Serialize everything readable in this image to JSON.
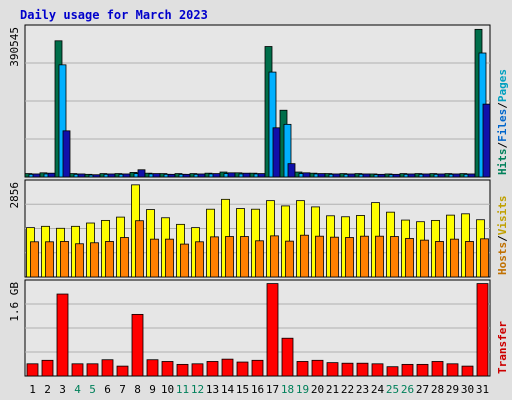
{
  "chart_data": {
    "title": "Daily usage for March 2023",
    "days": [
      "1",
      "2",
      "3",
      "4",
      "5",
      "6",
      "7",
      "8",
      "9",
      "10",
      "11",
      "12",
      "13",
      "14",
      "15",
      "16",
      "17",
      "18",
      "19",
      "20",
      "21",
      "22",
      "23",
      "24",
      "25",
      "26",
      "27",
      "28",
      "29",
      "30",
      "31"
    ],
    "weekend_days": [
      "4",
      "5",
      "11",
      "12",
      "18",
      "19",
      "25",
      "26"
    ],
    "panels": [
      {
        "type": "bar",
        "max_label": "390545",
        "ymax": 390545,
        "right_labels": [
          {
            "text": "Hits",
            "color": "#00805a"
          },
          {
            "text": "/",
            "color": "#000000"
          },
          {
            "text": "Files",
            "color": "#0066cc"
          },
          {
            "text": "/",
            "color": "#000000"
          },
          {
            "text": "Pages",
            "color": "#00a0c0"
          }
        ],
        "series": [
          {
            "name": "Hits",
            "color": "#006e4a",
            "values": [
              9000,
              11000,
              357000,
              9000,
              7000,
              9000,
              9000,
              12000,
              10000,
              9000,
              9000,
              9000,
              10000,
              13000,
              11000,
              10000,
              342000,
              175000,
              13000,
              10000,
              9000,
              9000,
              9000,
              8000,
              8000,
              9000,
              9000,
              9000,
              9000,
              9000,
              387000
            ]
          },
          {
            "name": "Files",
            "color": "#00b0ff",
            "values": [
              7000,
              8000,
              294000,
              7000,
              5000,
              7000,
              7000,
              9000,
              8000,
              7000,
              7000,
              7000,
              8000,
              9000,
              8000,
              8000,
              275000,
              138000,
              9000,
              8000,
              7000,
              7000,
              7000,
              6000,
              6000,
              7000,
              7000,
              7000,
              7000,
              7000,
              325000
            ]
          },
          {
            "name": "Pages",
            "color": "#1010aa",
            "values": [
              8000,
              10000,
              121000,
              8000,
              6000,
              8000,
              8000,
              19000,
              9000,
              7000,
              7000,
              8000,
              9000,
              11000,
              10000,
              9000,
              129000,
              35000,
              11000,
              9000,
              8000,
              8000,
              8000,
              7000,
              7000,
              8000,
              8000,
              8000,
              8000,
              8000,
              191000
            ]
          }
        ]
      },
      {
        "type": "bar",
        "max_label": "2856",
        "ymax": 2856,
        "right_labels": [
          {
            "text": "Hosts",
            "color": "#c07000"
          },
          {
            "text": "/",
            "color": "#000000"
          },
          {
            "text": "Visits",
            "color": "#c0a000"
          }
        ],
        "series": [
          {
            "name": "Visits",
            "color": "#ffff00",
            "values": [
              1500,
              1540,
              1480,
              1540,
              1640,
              1720,
              1820,
              2800,
              2050,
              1800,
              1600,
              1500,
              2060,
              2360,
              2080,
              2060,
              2320,
              2160,
              2320,
              2130,
              1860,
              1830,
              1870,
              2260,
              1970,
              1730,
              1680,
              1720,
              1880,
              1920,
              1740
            ]
          },
          {
            "name": "Hosts",
            "color": "#ff8000",
            "values": [
              1070,
              1070,
              1080,
              1010,
              1040,
              1080,
              1200,
              1710,
              1150,
              1150,
              1000,
              1070,
              1220,
              1230,
              1230,
              1100,
              1250,
              1090,
              1270,
              1240,
              1210,
              1200,
              1240,
              1240,
              1230,
              1170,
              1120,
              1080,
              1150,
              1080,
              1160
            ]
          }
        ]
      },
      {
        "type": "bar",
        "max_label": "1.6 GB",
        "ymax": 1.6,
        "right_labels": [
          {
            "text": "Transfer",
            "color": "#cc0000"
          }
        ],
        "series": [
          {
            "name": "Transfer",
            "color": "#ff0000",
            "values": [
              0.21,
              0.27,
              1.41,
              0.21,
              0.21,
              0.28,
              0.17,
              1.06,
              0.28,
              0.25,
              0.2,
              0.21,
              0.25,
              0.29,
              0.24,
              0.27,
              1.59,
              0.65,
              0.25,
              0.27,
              0.23,
              0.22,
              0.22,
              0.21,
              0.16,
              0.2,
              0.2,
              0.25,
              0.21,
              0.17,
              1.59
            ]
          }
        ]
      }
    ]
  }
}
